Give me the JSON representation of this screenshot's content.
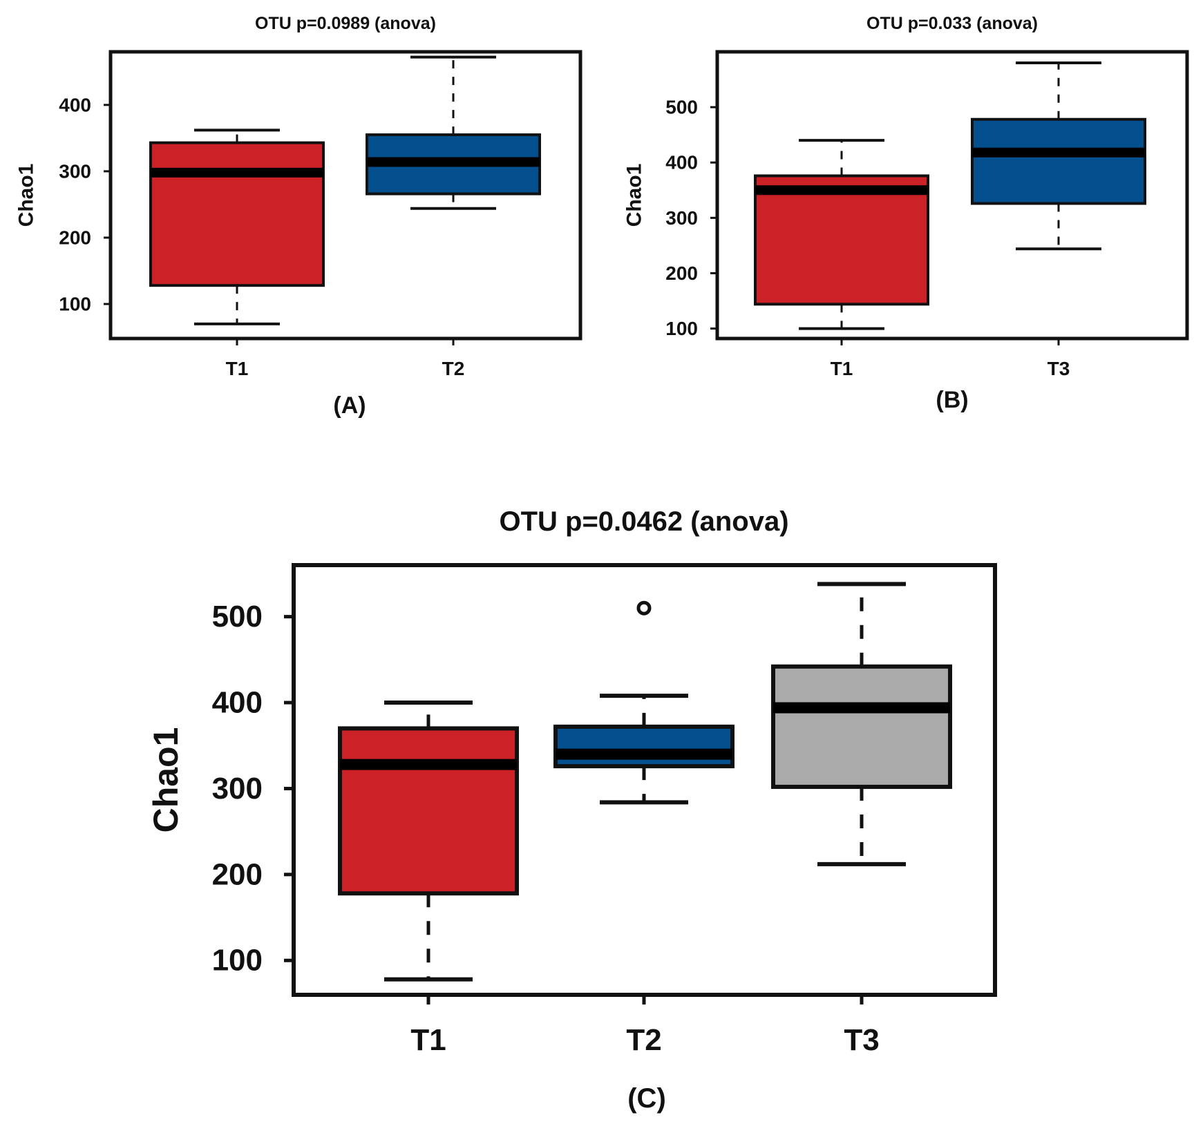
{
  "chart_data": [
    {
      "type": "box",
      "panel_label": "(A)",
      "title": "OTU p=0.0989 (anova)",
      "ylabel": "Chao1",
      "xlabel": "",
      "ylim": [
        48,
        480
      ],
      "yticks": [
        100,
        200,
        300,
        400
      ],
      "categories": [
        "T1",
        "T2"
      ],
      "boxes": [
        {
          "group": "T1",
          "whisker_low": 70,
          "q1": 128,
          "median": 298,
          "q3": 343,
          "whisker_high": 362,
          "color": "#cc2127",
          "outliers": []
        },
        {
          "group": "T2",
          "whisker_low": 244,
          "q1": 266,
          "median": 314,
          "q3": 355,
          "whisker_high": 472,
          "color": "#04508e",
          "outliers": []
        }
      ]
    },
    {
      "type": "box",
      "panel_label": "(B)",
      "title": "OTU p=0.033 (anova)",
      "ylabel": "Chao1",
      "xlabel": "",
      "ylim": [
        82,
        600
      ],
      "yticks": [
        100,
        200,
        300,
        400,
        500
      ],
      "categories": [
        "T1",
        "T3"
      ],
      "boxes": [
        {
          "group": "T1",
          "whisker_low": 100,
          "q1": 144,
          "median": 350,
          "q3": 376,
          "whisker_high": 440,
          "color": "#cc2127",
          "outliers": []
        },
        {
          "group": "T3",
          "whisker_low": 244,
          "q1": 326,
          "median": 418,
          "q3": 478,
          "whisker_high": 580,
          "color": "#04508e",
          "outliers": []
        }
      ]
    },
    {
      "type": "box",
      "panel_label": "(C)",
      "title": "OTU p=0.0462 (anova)",
      "ylabel": "Chao1",
      "xlabel": "",
      "ylim": [
        60,
        560
      ],
      "yticks": [
        100,
        200,
        300,
        400,
        500
      ],
      "categories": [
        "T1",
        "T2",
        "T3"
      ],
      "boxes": [
        {
          "group": "T1",
          "whisker_low": 78,
          "q1": 178,
          "median": 328,
          "q3": 370,
          "whisker_high": 400,
          "color": "#cc2127",
          "outliers": []
        },
        {
          "group": "T2",
          "whisker_low": 284,
          "q1": 326,
          "median": 340,
          "q3": 372,
          "whisker_high": 408,
          "color": "#04508e",
          "outliers": [
            510
          ]
        },
        {
          "group": "T3",
          "whisker_low": 212,
          "q1": 302,
          "median": 394,
          "q3": 442,
          "whisker_high": 538,
          "color": "#aaaaaa",
          "outliers": []
        }
      ]
    }
  ]
}
